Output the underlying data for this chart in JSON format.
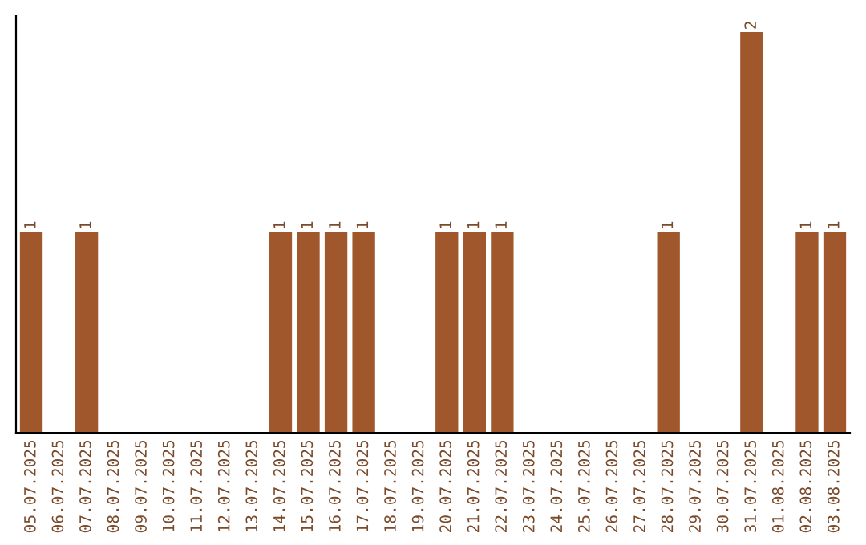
{
  "chart_data": {
    "type": "bar",
    "categories": [
      "05.07.2025",
      "06.07.2025",
      "07.07.2025",
      "08.07.2025",
      "09.07.2025",
      "10.07.2025",
      "11.07.2025",
      "12.07.2025",
      "13.07.2025",
      "14.07.2025",
      "15.07.2025",
      "16.07.2025",
      "17.07.2025",
      "18.07.2025",
      "19.07.2025",
      "20.07.2025",
      "21.07.2025",
      "22.07.2025",
      "23.07.2025",
      "24.07.2025",
      "25.07.2025",
      "26.07.2025",
      "27.07.2025",
      "28.07.2025",
      "29.07.2025",
      "30.07.2025",
      "31.07.2025",
      "01.08.2025",
      "02.08.2025",
      "03.08.2025"
    ],
    "values": [
      1,
      0,
      1,
      0,
      0,
      0,
      0,
      0,
      0,
      1,
      1,
      1,
      1,
      0,
      0,
      1,
      1,
      1,
      0,
      0,
      0,
      0,
      0,
      1,
      0,
      0,
      2,
      0,
      1,
      1
    ],
    "value_labels": [
      "1",
      null,
      "1",
      null,
      null,
      null,
      null,
      null,
      null,
      "1",
      "1",
      "1",
      "1",
      null,
      null,
      "1",
      "1",
      "1",
      null,
      null,
      null,
      null,
      null,
      "1",
      null,
      null,
      "2",
      null,
      "1",
      "1"
    ],
    "color": "#a0572b",
    "ylim": [
      0,
      2.08
    ],
    "tick_labels": "x",
    "grid": false,
    "legend": false
  }
}
